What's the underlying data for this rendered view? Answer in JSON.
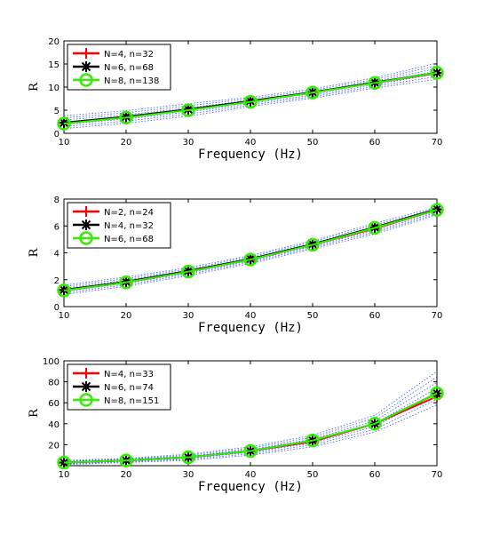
{
  "chart_data": [
    {
      "type": "line",
      "xlabel": "Frequency (Hz)",
      "ylabel": "R",
      "xlim": [
        10,
        70
      ],
      "ylim": [
        0,
        20
      ],
      "xticks": [
        10,
        20,
        30,
        40,
        50,
        60,
        70
      ],
      "yticks": [
        0,
        5,
        10,
        15,
        20
      ],
      "legend_position": "top-left",
      "x": [
        10,
        20,
        30,
        40,
        50,
        60,
        70
      ],
      "series": [
        {
          "name": "N=4, n=32",
          "color": "#ff0000",
          "marker": "plus",
          "values": [
            2.2,
            3.5,
            5.1,
            6.9,
            8.8,
            10.9,
            13.0
          ]
        },
        {
          "name": "N=6, n=68",
          "color": "#000000",
          "marker": "star",
          "values": [
            2.3,
            3.6,
            5.2,
            7.0,
            8.9,
            11.0,
            13.1
          ]
        },
        {
          "name": "N=8, n=138",
          "color": "#33ee00",
          "marker": "circle",
          "values": [
            2.1,
            3.4,
            5.0,
            6.8,
            8.8,
            10.9,
            13.1
          ]
        }
      ],
      "band": {
        "color": "#3355ff",
        "upper": [
          3.8,
          4.9,
          6.4,
          7.8,
          9.6,
          12.0,
          15.2
        ],
        "lower": [
          1.0,
          2.2,
          3.7,
          5.8,
          7.6,
          9.8,
          11.7
        ]
      }
    },
    {
      "type": "line",
      "xlabel": "Frequency (Hz)",
      "ylabel": "R",
      "xlim": [
        10,
        70
      ],
      "ylim": [
        0,
        8
      ],
      "xticks": [
        10,
        20,
        30,
        40,
        50,
        60,
        70
      ],
      "yticks": [
        0,
        2,
        4,
        6,
        8
      ],
      "legend_position": "top-left",
      "x": [
        10,
        20,
        30,
        40,
        50,
        60,
        70
      ],
      "series": [
        {
          "name": "N=2, n=24",
          "color": "#ff0000",
          "marker": "plus",
          "values": [
            1.2,
            1.8,
            2.6,
            3.5,
            4.6,
            5.8,
            7.2
          ]
        },
        {
          "name": "N=4, n=32",
          "color": "#000000",
          "marker": "star",
          "values": [
            1.25,
            1.85,
            2.65,
            3.55,
            4.65,
            5.9,
            7.25
          ]
        },
        {
          "name": "N=6, n=68",
          "color": "#33ee00",
          "marker": "circle",
          "values": [
            1.2,
            1.8,
            2.6,
            3.5,
            4.6,
            5.85,
            7.2
          ]
        }
      ],
      "band": {
        "color": "#3355ff",
        "upper": [
          1.6,
          2.2,
          2.9,
          3.8,
          4.9,
          6.2,
          7.4
        ],
        "lower": [
          0.9,
          1.5,
          2.3,
          3.2,
          4.3,
          5.4,
          6.8
        ]
      }
    },
    {
      "type": "line",
      "xlabel": "Frequency (Hz)",
      "ylabel": "R",
      "xlim": [
        10,
        70
      ],
      "ylim": [
        0,
        100
      ],
      "xticks": [
        10,
        20,
        30,
        40,
        50,
        60,
        70
      ],
      "yticks": [
        20,
        40,
        60,
        80,
        100
      ],
      "legend_position": "top-left",
      "x": [
        10,
        20,
        30,
        40,
        50,
        60,
        70
      ],
      "series": [
        {
          "name": "N=4, n=33",
          "color": "#ff0000",
          "marker": "plus",
          "values": [
            3,
            5,
            8,
            14,
            23,
            40,
            66
          ]
        },
        {
          "name": "N=6, n=74",
          "color": "#000000",
          "marker": "star",
          "values": [
            3,
            5,
            8,
            14,
            24,
            40,
            69
          ]
        },
        {
          "name": "N=8, n=151",
          "color": "#33ee00",
          "marker": "circle",
          "values": [
            3,
            5,
            8,
            14,
            24,
            40,
            69
          ]
        }
      ],
      "band": {
        "color": "#3355ff",
        "upper": [
          5,
          7,
          11,
          18,
          29,
          48,
          90
        ],
        "lower": [
          1,
          3,
          5,
          10,
          18,
          32,
          58
        ]
      }
    }
  ]
}
